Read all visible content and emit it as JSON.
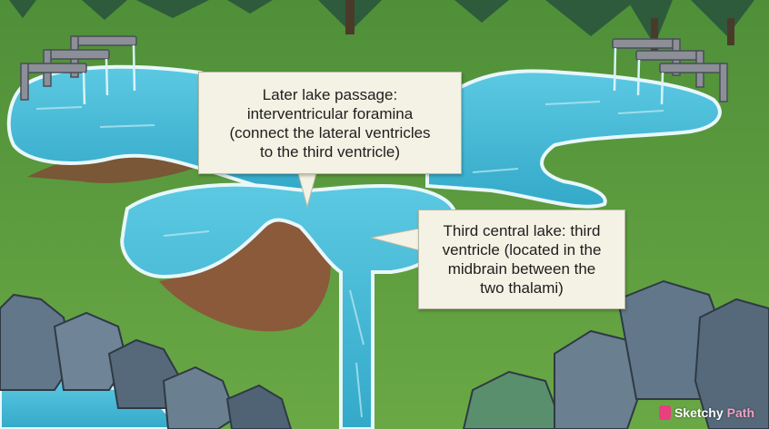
{
  "callouts": [
    {
      "text": "Later lake passage:\ninterventricular foramina\n(connect the lateral ventricles\nto the third ventricle)"
    },
    {
      "text": "Third central lake: third\nventricle (located in the\nmidbrain between the\ntwo thalami)"
    }
  ],
  "branding": {
    "part1": "Sketchy",
    "part2": "Path"
  },
  "colors": {
    "grass": "#5e9a3c",
    "water": "#3fb8d6",
    "dirt": "#8a5a3a",
    "rock": "#5f7486",
    "callout_bg": "#f3f2e4",
    "logo_accent": "#e83f7e"
  }
}
